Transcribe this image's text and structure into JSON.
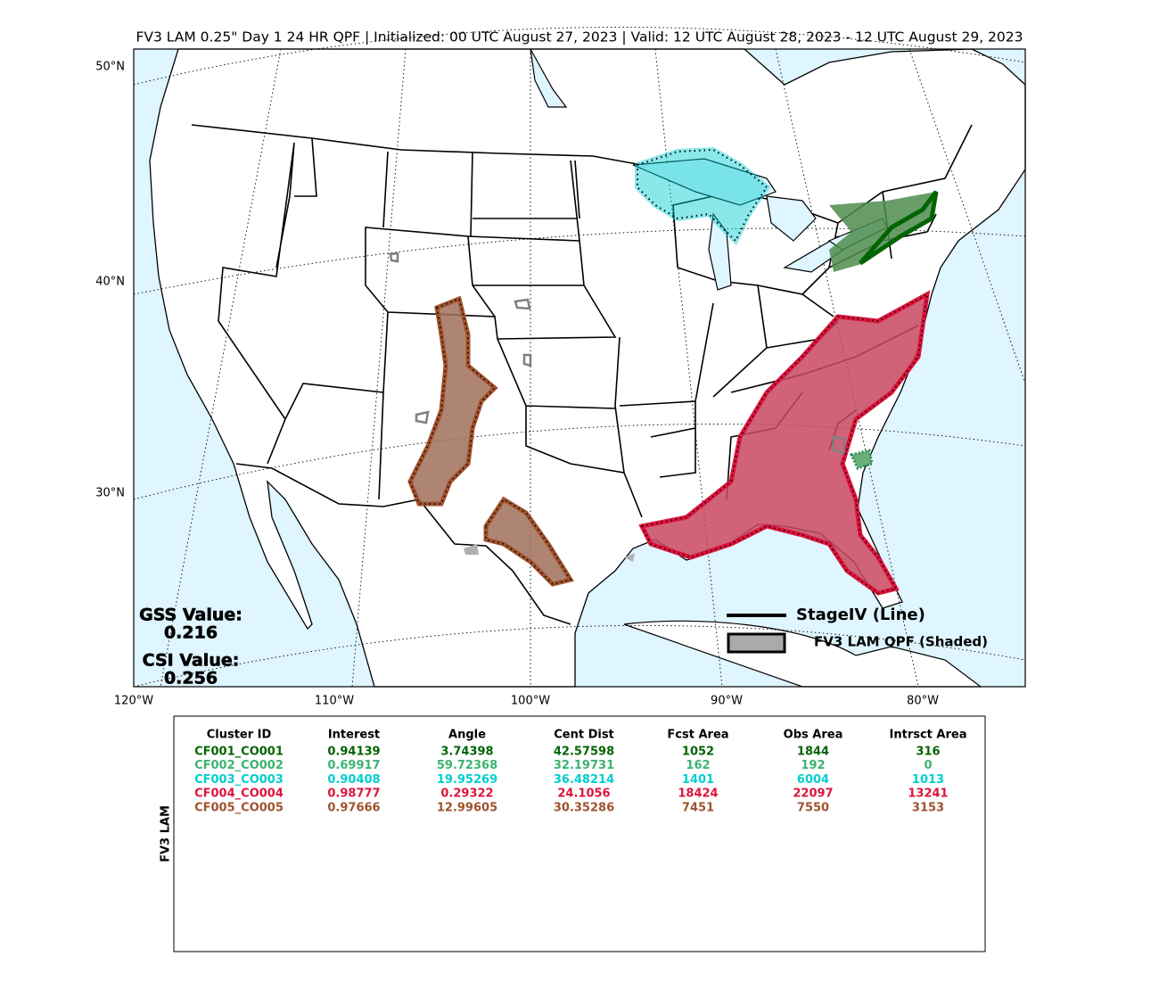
{
  "title": "FV3 LAM 0.25\" Day 1 24 HR QPF | Initialized: 00 UTC August 27, 2023 | Valid: 12 UTC August 28, 2023 - 12 UTC August 29, 2023",
  "map": {
    "lat_labels": [
      "50°N",
      "40°N",
      "30°N"
    ],
    "lon_labels": [
      "120°W",
      "110°W",
      "100°W",
      "90°W",
      "80°W"
    ],
    "stats": {
      "gss_label": "GSS Value:",
      "gss": "0.216",
      "csi_label": "CSI Value:",
      "csi": "0.256"
    },
    "legend": [
      "StageIV (Line)",
      "FV3 LAM QPF (Shaded)"
    ]
  },
  "table": {
    "side_label": "FV3 LAM",
    "headers": [
      "Cluster ID",
      "Interest",
      "Angle",
      "Cent Dist",
      "Fcst Area",
      "Obs Area",
      "Intrsct Area"
    ],
    "rows": [
      [
        "CF001_CO001",
        "0.94139",
        "3.74398",
        "42.57598",
        "1052",
        "1844",
        "316"
      ],
      [
        "CF002_CO002",
        "0.69917",
        "59.72368",
        "32.19731",
        "162",
        "192",
        "0"
      ],
      [
        "CF003_CO003",
        "0.90408",
        "19.95269",
        "36.48214",
        "1401",
        "6004",
        "1013"
      ],
      [
        "CF004_CO004",
        "0.98777",
        "0.29322",
        "24.1056",
        "18424",
        "22097",
        "13241"
      ],
      [
        "CF005_CO005",
        "0.97666",
        "12.99605",
        "30.35286",
        "7451",
        "7550",
        "3153"
      ]
    ],
    "row_colors": [
      "#006400",
      "#3cb371",
      "#00ced1",
      "#dc143c",
      "#a0522d"
    ]
  }
}
